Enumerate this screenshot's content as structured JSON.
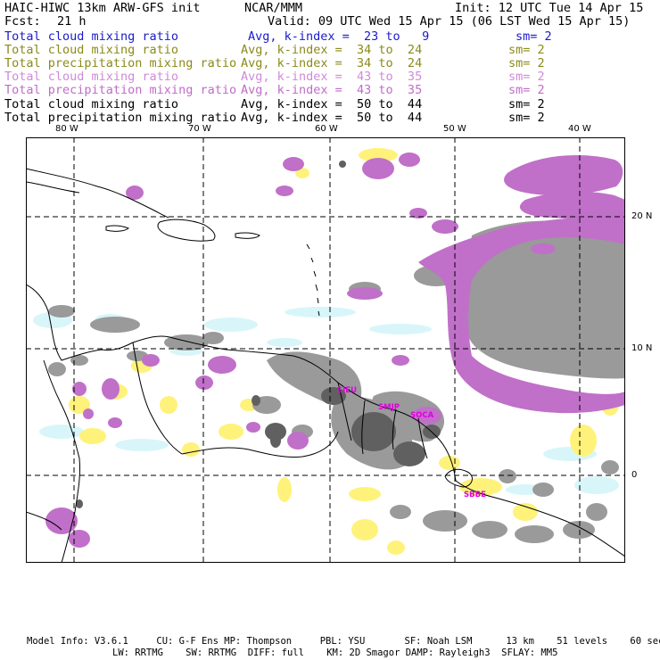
{
  "header": {
    "model_title": "HAIC-HIWC 13km ARW-GFS init",
    "center": "NCAR/MMM",
    "init": "Init: 12 UTC Tue 14 Apr 15",
    "fcst_label": "Fcst:",
    "fcst_value": "21 h",
    "valid": "Valid: 09 UTC Wed 15 Apr 15 (06 LST Wed 15 Apr 15)"
  },
  "fields": [
    {
      "name": "Total cloud mixing ratio",
      "avg": "Avg, k-index =  23 to   9",
      "sm": "sm= 2",
      "color": "#1a1acc"
    },
    {
      "name": "Total cloud mixing ratio",
      "avg": "Avg, k-index =  34 to  24",
      "sm": "sm= 2",
      "color": "#8a8a1a"
    },
    {
      "name": "Total precipitation mixing ratio",
      "avg": "Avg, k-index =  34 to  24",
      "sm": "sm= 2",
      "color": "#8a8a1a"
    },
    {
      "name": "Total cloud mixing ratio",
      "avg": "Avg, k-index =  43 to  35",
      "sm": "sm= 2",
      "color": "#d08ad8"
    },
    {
      "name": "Total precipitation mixing ratio",
      "avg": "Avg, k-index =  43 to  35",
      "sm": "sm= 2",
      "color": "#c06cc8"
    },
    {
      "name": "Total cloud mixing ratio",
      "avg": "Avg, k-index =  50 to  44",
      "sm": "sm= 2",
      "color": "#000000"
    },
    {
      "name": "Total precipitation mixing ratio",
      "avg": "Avg, k-index =  50 to  44",
      "sm": "sm= 2",
      "color": "#000000"
    }
  ],
  "axes": {
    "lon_labels": [
      "80 W",
      "70 W",
      "60 W",
      "50 W",
      "40 W"
    ],
    "lat_labels": [
      "20 N",
      "10 N",
      "0"
    ]
  },
  "sites": [
    "SIEU",
    "SMJP",
    "SOCA",
    "SBBE"
  ],
  "colors": {
    "gray_cloud": "#9a9a9a",
    "dark_gray": "#606060",
    "purple": "#c070c8",
    "yellow": "#fff27a",
    "cyan": "#d8f6fa"
  },
  "footer": {
    "line1": "Model Info: V3.6.1     CU: G-F Ens MP: Thompson     PBL: YSU       SF: Noah LSM      13 km    51 levels    60 sec",
    "line2": "LW: RRTMG    SW: RRTMG  DIFF: full    KM: 2D Smagor DAMP: Rayleigh3  SFLAY: MM5"
  }
}
